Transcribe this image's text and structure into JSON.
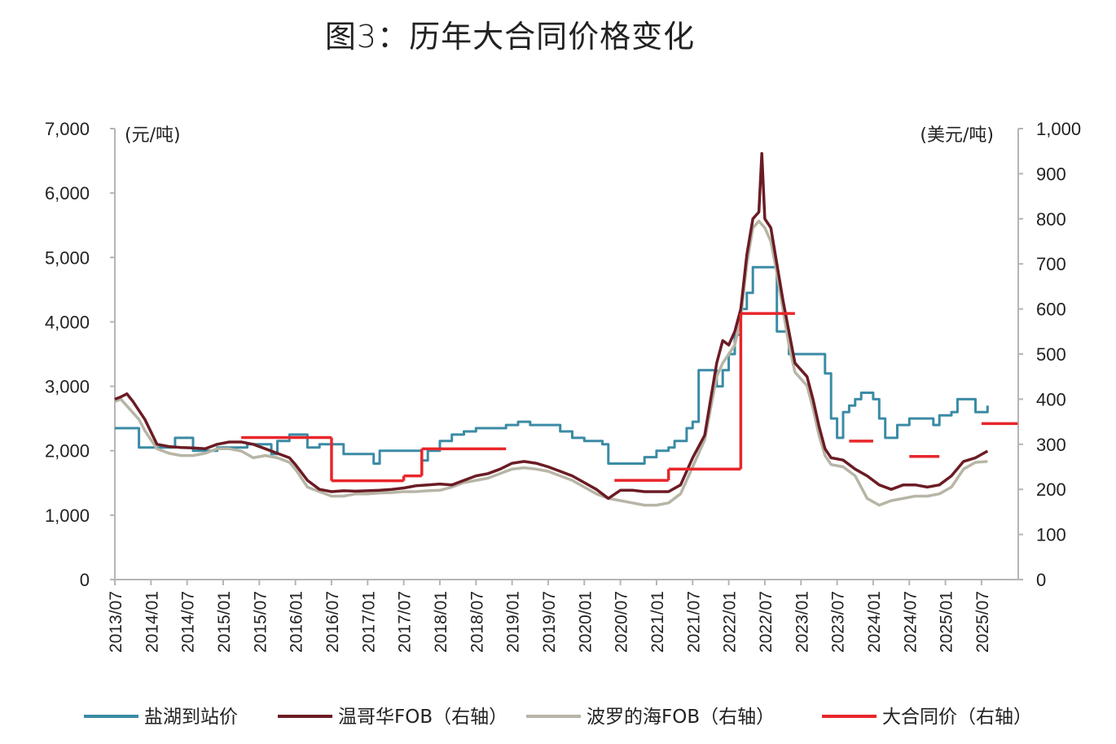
{
  "title": "图3：历年大合同价格变化",
  "chart_data": {
    "type": "line",
    "left_unit": "(元/吨)",
    "right_unit": "(美元/吨)",
    "ylim_left": [
      0,
      7000
    ],
    "ylim_right": [
      0,
      1000
    ],
    "left_ticks": [
      "0",
      "1,000",
      "2,000",
      "3,000",
      "4,000",
      "5,000",
      "6,000",
      "7,000"
    ],
    "right_ticks": [
      "0",
      "100",
      "200",
      "300",
      "400",
      "500",
      "600",
      "700",
      "800",
      "900",
      "1,000"
    ],
    "x_ticks": [
      "2013/07",
      "2014/01",
      "2014/07",
      "2015/01",
      "2015/07",
      "2016/01",
      "2016/07",
      "2017/01",
      "2017/07",
      "2018/01",
      "2018/07",
      "2019/01",
      "2019/07",
      "2020/01",
      "2020/07",
      "2021/01",
      "2021/07",
      "2022/01",
      "2022/07",
      "2023/01",
      "2023/07",
      "2024/01",
      "2024/07",
      "2025/01",
      "2025/07"
    ],
    "grid": false,
    "legend_position": "bottom",
    "series": [
      {
        "name": "盐湖到站价",
        "axis": "left",
        "color": "#3B8BA5",
        "style": "step",
        "points": [
          [
            "2013/07",
            2350
          ],
          [
            "2013/10",
            2350
          ],
          [
            "2013/11",
            2050
          ],
          [
            "2014/04",
            2050
          ],
          [
            "2014/05",
            2200
          ],
          [
            "2014/07",
            2200
          ],
          [
            "2014/08",
            2000
          ],
          [
            "2014/11",
            2000
          ],
          [
            "2014/12",
            2050
          ],
          [
            "2015/04",
            2050
          ],
          [
            "2015/05",
            2100
          ],
          [
            "2015/08",
            2100
          ],
          [
            "2015/09",
            1950
          ],
          [
            "2015/10",
            2150
          ],
          [
            "2015/12",
            2250
          ],
          [
            "2016/02",
            2250
          ],
          [
            "2016/03",
            2050
          ],
          [
            "2016/05",
            2100
          ],
          [
            "2016/08",
            2100
          ],
          [
            "2016/09",
            1950
          ],
          [
            "2017/01",
            1950
          ],
          [
            "2017/02",
            1800
          ],
          [
            "2017/03",
            2000
          ],
          [
            "2017/09",
            2000
          ],
          [
            "2017/10",
            1850
          ],
          [
            "2017/11",
            2000
          ],
          [
            "2018/01",
            2150
          ],
          [
            "2018/03",
            2250
          ],
          [
            "2018/05",
            2300
          ],
          [
            "2018/07",
            2350
          ],
          [
            "2018/12",
            2400
          ],
          [
            "2019/02",
            2450
          ],
          [
            "2019/04",
            2400
          ],
          [
            "2019/08",
            2400
          ],
          [
            "2019/09",
            2300
          ],
          [
            "2019/11",
            2200
          ],
          [
            "2020/01",
            2150
          ],
          [
            "2020/04",
            2100
          ],
          [
            "2020/05",
            1800
          ],
          [
            "2020/09",
            1800
          ],
          [
            "2020/11",
            1900
          ],
          [
            "2021/01",
            2000
          ],
          [
            "2021/03",
            2050
          ],
          [
            "2021/04",
            2150
          ],
          [
            "2021/06",
            2350
          ],
          [
            "2021/07",
            2450
          ],
          [
            "2021/08",
            3250
          ],
          [
            "2021/10",
            3250
          ],
          [
            "2021/11",
            3000
          ],
          [
            "2021/12",
            3250
          ],
          [
            "2022/01",
            3500
          ],
          [
            "2022/02",
            3800
          ],
          [
            "2022/03",
            4200
          ],
          [
            "2022/04",
            4450
          ],
          [
            "2022/05",
            4850
          ],
          [
            "2022/08",
            4850
          ],
          [
            "2022/09",
            3850
          ],
          [
            "2022/11",
            3500
          ],
          [
            "2023/04",
            3500
          ],
          [
            "2023/05",
            3200
          ],
          [
            "2023/06",
            2500
          ],
          [
            "2023/07",
            2200
          ],
          [
            "2023/08",
            2600
          ],
          [
            "2023/09",
            2700
          ],
          [
            "2023/10",
            2800
          ],
          [
            "2023/11",
            2900
          ],
          [
            "2024/01",
            2800
          ],
          [
            "2024/02",
            2500
          ],
          [
            "2024/03",
            2200
          ],
          [
            "2024/05",
            2400
          ],
          [
            "2024/07",
            2500
          ],
          [
            "2024/10",
            2500
          ],
          [
            "2024/11",
            2400
          ],
          [
            "2024/12",
            2550
          ],
          [
            "2025/02",
            2600
          ],
          [
            "2025/03",
            2800
          ],
          [
            "2025/05",
            2800
          ],
          [
            "2025/06",
            2600
          ],
          [
            "2025/08",
            2700
          ]
        ]
      },
      {
        "name": "温哥华FOB（右轴）",
        "axis": "right",
        "color": "#6B1C24",
        "style": "line",
        "points": [
          [
            "2013/07",
            400
          ],
          [
            "2013/08",
            405
          ],
          [
            "2013/09",
            412
          ],
          [
            "2013/10",
            395
          ],
          [
            "2013/11",
            375
          ],
          [
            "2013/12",
            355
          ],
          [
            "2014/02",
            300
          ],
          [
            "2014/04",
            295
          ],
          [
            "2014/06",
            293
          ],
          [
            "2014/08",
            292
          ],
          [
            "2014/10",
            290
          ],
          [
            "2014/12",
            300
          ],
          [
            "2015/02",
            305
          ],
          [
            "2015/04",
            305
          ],
          [
            "2015/06",
            300
          ],
          [
            "2015/08",
            290
          ],
          [
            "2015/10",
            280
          ],
          [
            "2015/12",
            270
          ],
          [
            "2016/01",
            255
          ],
          [
            "2016/03",
            220
          ],
          [
            "2016/05",
            200
          ],
          [
            "2016/07",
            195
          ],
          [
            "2016/09",
            197
          ],
          [
            "2016/11",
            196
          ],
          [
            "2017/01",
            197
          ],
          [
            "2017/03",
            198
          ],
          [
            "2017/05",
            200
          ],
          [
            "2017/07",
            203
          ],
          [
            "2017/09",
            208
          ],
          [
            "2017/11",
            210
          ],
          [
            "2018/01",
            212
          ],
          [
            "2018/03",
            210
          ],
          [
            "2018/05",
            220
          ],
          [
            "2018/07",
            230
          ],
          [
            "2018/09",
            235
          ],
          [
            "2018/11",
            245
          ],
          [
            "2019/01",
            258
          ],
          [
            "2019/03",
            262
          ],
          [
            "2019/05",
            258
          ],
          [
            "2019/07",
            250
          ],
          [
            "2019/09",
            240
          ],
          [
            "2019/11",
            230
          ],
          [
            "2020/01",
            215
          ],
          [
            "2020/03",
            200
          ],
          [
            "2020/05",
            180
          ],
          [
            "2020/07",
            198
          ],
          [
            "2020/09",
            198
          ],
          [
            "2020/11",
            195
          ],
          [
            "2021/01",
            195
          ],
          [
            "2021/03",
            195
          ],
          [
            "2021/05",
            210
          ],
          [
            "2021/07",
            270
          ],
          [
            "2021/09",
            320
          ],
          [
            "2021/11",
            480
          ],
          [
            "2021/12",
            530
          ],
          [
            "2022/01",
            520
          ],
          [
            "2022/02",
            550
          ],
          [
            "2022/03",
            600
          ],
          [
            "2022/04",
            720
          ],
          [
            "2022/05",
            800
          ],
          [
            "2022/06",
            815
          ],
          [
            "2022/06.5",
            945
          ],
          [
            "2022/07",
            800
          ],
          [
            "2022/08",
            780
          ],
          [
            "2022/09",
            700
          ],
          [
            "2022/10",
            620
          ],
          [
            "2022/11",
            550
          ],
          [
            "2022/12",
            480
          ],
          [
            "2023/02",
            450
          ],
          [
            "2023/03",
            400
          ],
          [
            "2023/04",
            340
          ],
          [
            "2023/05",
            290
          ],
          [
            "2023/06",
            270
          ],
          [
            "2023/08",
            265
          ],
          [
            "2023/10",
            245
          ],
          [
            "2023/12",
            230
          ],
          [
            "2024/02",
            210
          ],
          [
            "2024/04",
            200
          ],
          [
            "2024/06",
            210
          ],
          [
            "2024/08",
            210
          ],
          [
            "2024/10",
            205
          ],
          [
            "2024/12",
            210
          ],
          [
            "2025/02",
            230
          ],
          [
            "2025/04",
            262
          ],
          [
            "2025/06",
            270
          ],
          [
            "2025/08",
            285
          ]
        ]
      },
      {
        "name": "波罗的海FOB（右轴）",
        "axis": "right",
        "color": "#B7B5A6",
        "style": "line",
        "points": [
          [
            "2013/07",
            395
          ],
          [
            "2013/08",
            400
          ],
          [
            "2013/09",
            385
          ],
          [
            "2013/10",
            370
          ],
          [
            "2013/11",
            355
          ],
          [
            "2013/12",
            330
          ],
          [
            "2014/02",
            290
          ],
          [
            "2014/04",
            280
          ],
          [
            "2014/06",
            275
          ],
          [
            "2014/08",
            275
          ],
          [
            "2014/10",
            280
          ],
          [
            "2014/12",
            290
          ],
          [
            "2015/02",
            290
          ],
          [
            "2015/04",
            285
          ],
          [
            "2015/06",
            270
          ],
          [
            "2015/08",
            275
          ],
          [
            "2015/10",
            270
          ],
          [
            "2015/12",
            260
          ],
          [
            "2016/01",
            245
          ],
          [
            "2016/03",
            205
          ],
          [
            "2016/05",
            195
          ],
          [
            "2016/07",
            185
          ],
          [
            "2016/09",
            185
          ],
          [
            "2016/11",
            190
          ],
          [
            "2017/01",
            190
          ],
          [
            "2017/03",
            192
          ],
          [
            "2017/05",
            193
          ],
          [
            "2017/07",
            195
          ],
          [
            "2017/09",
            195
          ],
          [
            "2017/11",
            197
          ],
          [
            "2018/01",
            198
          ],
          [
            "2018/03",
            205
          ],
          [
            "2018/05",
            215
          ],
          [
            "2018/07",
            220
          ],
          [
            "2018/09",
            225
          ],
          [
            "2018/11",
            235
          ],
          [
            "2019/01",
            245
          ],
          [
            "2019/03",
            248
          ],
          [
            "2019/05",
            245
          ],
          [
            "2019/07",
            240
          ],
          [
            "2019/09",
            230
          ],
          [
            "2019/11",
            220
          ],
          [
            "2020/01",
            205
          ],
          [
            "2020/03",
            190
          ],
          [
            "2020/05",
            180
          ],
          [
            "2020/07",
            175
          ],
          [
            "2020/09",
            170
          ],
          [
            "2020/11",
            165
          ],
          [
            "2021/01",
            165
          ],
          [
            "2021/03",
            170
          ],
          [
            "2021/05",
            190
          ],
          [
            "2021/07",
            250
          ],
          [
            "2021/09",
            310
          ],
          [
            "2021/11",
            450
          ],
          [
            "2021/12",
            480
          ],
          [
            "2022/01",
            500
          ],
          [
            "2022/02",
            520
          ],
          [
            "2022/03",
            580
          ],
          [
            "2022/04",
            700
          ],
          [
            "2022/05",
            780
          ],
          [
            "2022/06",
            795
          ],
          [
            "2022/07",
            780
          ],
          [
            "2022/08",
            750
          ],
          [
            "2022/09",
            680
          ],
          [
            "2022/10",
            600
          ],
          [
            "2022/11",
            520
          ],
          [
            "2022/12",
            460
          ],
          [
            "2023/02",
            430
          ],
          [
            "2023/03",
            380
          ],
          [
            "2023/04",
            320
          ],
          [
            "2023/05",
            275
          ],
          [
            "2023/06",
            255
          ],
          [
            "2023/08",
            250
          ],
          [
            "2023/10",
            230
          ],
          [
            "2023/12",
            180
          ],
          [
            "2024/02",
            165
          ],
          [
            "2024/04",
            175
          ],
          [
            "2024/06",
            180
          ],
          [
            "2024/08",
            185
          ],
          [
            "2024/10",
            185
          ],
          [
            "2024/12",
            190
          ],
          [
            "2025/02",
            205
          ],
          [
            "2025/04",
            245
          ],
          [
            "2025/06",
            260
          ],
          [
            "2025/08",
            262
          ]
        ]
      },
      {
        "name": "大合同价（右轴）",
        "axis": "right",
        "color": "#E8262B",
        "style": "segments",
        "segments": [
          {
            "from": "2015/04",
            "to": "2016/07",
            "value": 315
          },
          {
            "from": "2016/07",
            "to": "2017/07",
            "value": 219
          },
          {
            "from": "2017/07",
            "to": "2017/10",
            "value": 230
          },
          {
            "from": "2017/10",
            "to": "2018/12",
            "value": 290
          },
          {
            "from": "2020/06",
            "to": "2021/03",
            "value": 220
          },
          {
            "from": "2021/03",
            "to": "2022/03",
            "value": 245
          },
          {
            "from": "2022/03",
            "to": "2022/12",
            "value": 590
          },
          {
            "from": "2023/09",
            "to": "2024/01",
            "value": 307
          },
          {
            "from": "2024/07",
            "to": "2024/12",
            "value": 273
          },
          {
            "from": "2025/07",
            "to": "2026/01",
            "value": 346
          }
        ]
      }
    ]
  }
}
